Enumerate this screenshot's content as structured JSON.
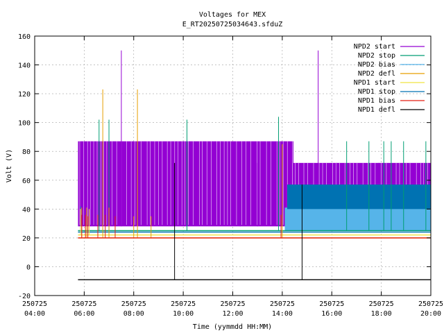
{
  "chart_data": {
    "type": "line",
    "title": "Voltages for MEX",
    "subtitle": "E_RT20250725034643.sfduZ",
    "xlabel": "Time (yymmdd HH:MM)",
    "ylabel": "Volt (V)",
    "xlim_hours": [
      4,
      20
    ],
    "ylim": [
      -20,
      160
    ],
    "yticks": [
      -20,
      0,
      20,
      40,
      60,
      80,
      100,
      120,
      140,
      160
    ],
    "xticks": [
      {
        "date": "250725",
        "time": "04:00",
        "hour": 4
      },
      {
        "date": "250725",
        "time": "06:00",
        "hour": 6
      },
      {
        "date": "250725",
        "time": "08:00",
        "hour": 8
      },
      {
        "date": "250725",
        "time": "10:00",
        "hour": 10
      },
      {
        "date": "250725",
        "time": "12:00",
        "hour": 12
      },
      {
        "date": "250725",
        "time": "14:00",
        "hour": 14
      },
      {
        "date": "250725",
        "time": "16:00",
        "hour": 16
      },
      {
        "date": "250725",
        "time": "18:00",
        "hour": 18
      },
      {
        "date": "250725",
        "time": "20:00",
        "hour": 20
      }
    ],
    "grid": true,
    "legend_position": "top-right",
    "series": [
      {
        "name": "NPD2 start",
        "color": "#9400d3",
        "band": [
          {
            "x0": 5.75,
            "x1": 14.45,
            "low": 28,
            "high": 87
          },
          {
            "x0": 14.45,
            "x1": 20,
            "low": 28,
            "high": 72
          }
        ],
        "spikes": [
          [
            7.5,
            150
          ],
          [
            15.45,
            150
          ],
          [
            12.3,
            72
          ],
          [
            13.0,
            72
          ],
          [
            16.2,
            72
          ],
          [
            17.9,
            72
          ]
        ]
      },
      {
        "name": "NPD2 stop",
        "color": "#009e73",
        "base": 25,
        "spikes": [
          [
            6.6,
            102
          ],
          [
            7.0,
            102
          ],
          [
            10.15,
            102
          ],
          [
            13.85,
            104
          ],
          [
            16.6,
            87
          ],
          [
            17.5,
            87
          ],
          [
            18.1,
            87
          ],
          [
            18.4,
            87
          ],
          [
            18.9,
            87
          ],
          [
            19.8,
            87
          ]
        ]
      },
      {
        "name": "NPD2 bias",
        "color": "#56b4e9",
        "band": [
          {
            "x0": 14.1,
            "x1": 20,
            "low": 25,
            "high": 41
          }
        ]
      },
      {
        "name": "NPD2 defl",
        "color": "#e69f00",
        "base": 20,
        "spikes": [
          [
            6.75,
            123
          ],
          [
            8.15,
            123
          ],
          [
            5.9,
            41
          ],
          [
            6.1,
            41
          ],
          [
            7.0,
            41
          ],
          [
            8.0,
            35
          ],
          [
            8.7,
            35
          ],
          [
            14.0,
            85
          ]
        ]
      },
      {
        "name": "NPD1 start",
        "color": "#f0e442",
        "base": 22,
        "spikes": [
          [
            5.85,
            40
          ],
          [
            6.2,
            40
          ]
        ]
      },
      {
        "name": "NPD1 stop",
        "color": "#0072b2",
        "base": 24,
        "band": [
          {
            "x0": 14.2,
            "x1": 20,
            "low": 40,
            "high": 57
          }
        ],
        "spikes": [
          [
            5.85,
            42
          ]
        ]
      },
      {
        "name": "NPD1 bias",
        "color": "#e51e10",
        "base": 20,
        "spikes": [
          [
            5.9,
            36
          ],
          [
            6.05,
            36
          ],
          [
            6.15,
            35
          ],
          [
            6.55,
            36
          ],
          [
            6.85,
            36
          ],
          [
            7.25,
            35
          ],
          [
            13.95,
            36
          ]
        ]
      },
      {
        "name": "NPD1 defl",
        "color": "#000000",
        "base": -9,
        "spikes": [
          [
            9.65,
            72
          ],
          [
            14.8,
            57
          ]
        ]
      }
    ]
  }
}
